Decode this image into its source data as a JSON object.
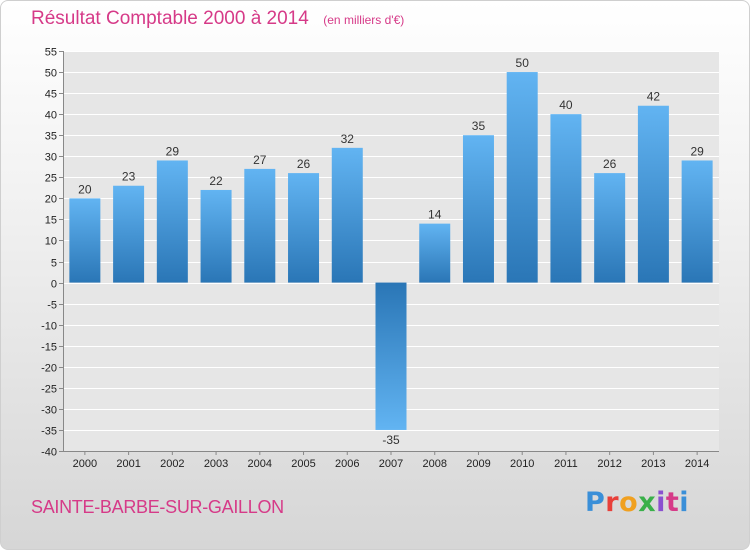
{
  "chart_data": {
    "type": "bar",
    "title": "Résultat Comptable 2000 à 2014",
    "subtitle": "(en milliers d'€)",
    "categories": [
      "2000",
      "2001",
      "2002",
      "2003",
      "2004",
      "2005",
      "2006",
      "2007",
      "2008",
      "2009",
      "2010",
      "2011",
      "2012",
      "2013",
      "2014"
    ],
    "values": [
      20,
      23,
      29,
      22,
      27,
      26,
      32,
      -35,
      14,
      35,
      50,
      40,
      26,
      42,
      29
    ],
    "ylim": [
      -40,
      55
    ],
    "yticks": [
      55,
      50,
      45,
      40,
      35,
      30,
      25,
      20,
      15,
      10,
      5,
      0,
      -5,
      -10,
      -15,
      -20,
      -25,
      -30,
      -35,
      -40
    ],
    "grid": true,
    "xlabel": "",
    "ylabel": ""
  },
  "footer": {
    "commune": "SAINTE-BARBE-SUR-GAILLON",
    "logo": "Proxiti"
  },
  "colors": {
    "accent": "#d63a88",
    "bar_light": "#5eb0f0",
    "bar_dark": "#2a78b8"
  }
}
